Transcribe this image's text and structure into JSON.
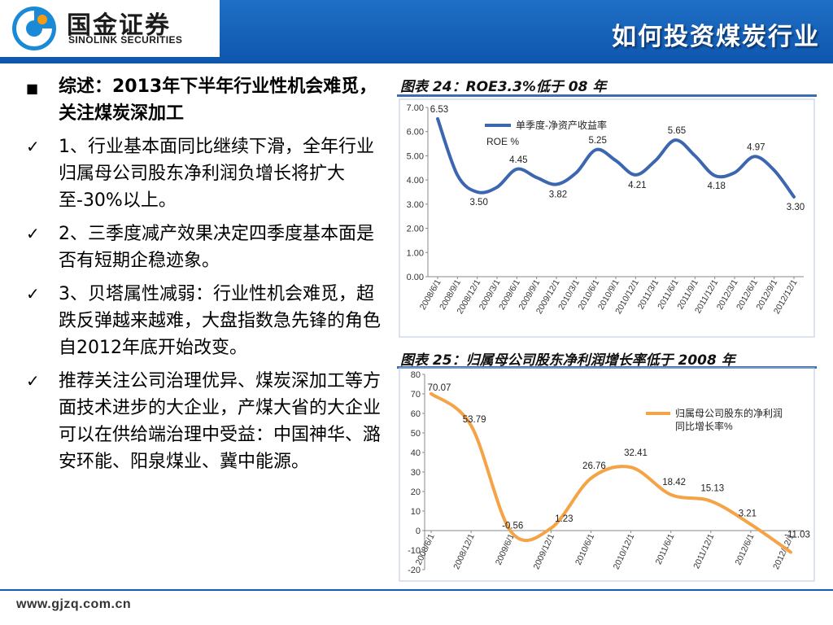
{
  "header": {
    "logo_cn": "国金证券",
    "logo_en": "SINOLINK SECURITIES",
    "title": "如何投资煤炭行业"
  },
  "bullets": [
    {
      "mark": "■",
      "text": "综述：2013年下半年行业性机会难觅，关注煤炭深加工"
    },
    {
      "mark": "✓",
      "text": "1、行业基本面同比继续下滑，全年行业归属母公司股东净利润负增长将扩大至-30%以上。"
    },
    {
      "mark": "✓",
      "text": "2、三季度减产效果决定四季度基本面是否有短期企稳迹象。"
    },
    {
      "mark": "✓",
      "text": "3、贝塔属性减弱：行业性机会难觅，超跌反弹越来越难，大盘指数急先锋的角色自2012年底开始改变。"
    },
    {
      "mark": "✓",
      "text": "推荐关注公司治理优异、煤炭深加工等方面技术进步的大企业，产煤大省的大企业可以在供给端治理中受益：中国神华、潞安环能、阳泉煤业、冀中能源。"
    }
  ],
  "footer": {
    "url": "www.gjzq.com.cn"
  },
  "chart_data": [
    {
      "type": "line",
      "title": "图表 24：ROE3.3%低于 08 年",
      "legend": [
        "单季度-净资产收益率",
        "ROE %"
      ],
      "x": [
        "2008/6/1",
        "2008/9/1",
        "2008/12/1",
        "2009/3/1",
        "2009/6/1",
        "2009/9/1",
        "2009/12/1",
        "2010/3/1",
        "2010/6/1",
        "2010/9/1",
        "2010/12/1",
        "2011/3/1",
        "2011/6/1",
        "2011/9/1",
        "2011/12/1",
        "2012/3/1",
        "2012/6/1",
        "2012/9/1",
        "2012/12/1"
      ],
      "values": [
        6.53,
        4.2,
        3.5,
        3.7,
        4.45,
        4.1,
        3.82,
        4.3,
        5.25,
        4.8,
        4.21,
        4.8,
        5.65,
        5.0,
        4.18,
        4.3,
        4.97,
        4.4,
        3.3
      ],
      "labels": [
        {
          "i": 0,
          "text": "6.53"
        },
        {
          "i": 2,
          "text": "3.50"
        },
        {
          "i": 4,
          "text": "4.45"
        },
        {
          "i": 6,
          "text": "3.82"
        },
        {
          "i": 8,
          "text": "5.25"
        },
        {
          "i": 10,
          "text": "4.21"
        },
        {
          "i": 12,
          "text": "5.65"
        },
        {
          "i": 14,
          "text": "4.18"
        },
        {
          "i": 16,
          "text": "4.97"
        },
        {
          "i": 18,
          "text": "3.30"
        }
      ],
      "ylim": [
        0,
        7
      ],
      "yticks": [
        "0.00",
        "1.00",
        "2.00",
        "3.00",
        "4.00",
        "5.00",
        "6.00",
        "7.00"
      ],
      "color": "#3c66b0"
    },
    {
      "type": "line",
      "title": "图表 25：归属母公司股东净利润增长率低于 2008 年",
      "legend": [
        "归属母公司股东的净利润",
        "同比增长率%"
      ],
      "x": [
        "2008/6/1",
        "2008/12/1",
        "2009/6/1",
        "2009/12/1",
        "2010/6/1",
        "2010/12/1",
        "2011/6/1",
        "2011/12/1",
        "2012/6/1",
        "2012/12/1"
      ],
      "values": [
        70.07,
        53.79,
        -0.56,
        1.23,
        26.76,
        32.41,
        18.42,
        15.13,
        3.21,
        -11.03
      ],
      "labels": [
        "70.07",
        "53.79",
        "-0.56",
        "1.23",
        "26.76",
        "32.41",
        "18.42",
        "15.13",
        "3.21",
        "-11.03"
      ],
      "ylim": [
        -20,
        80
      ],
      "yticks": [
        "-20",
        "-10",
        "0",
        "10",
        "20",
        "30",
        "40",
        "50",
        "60",
        "70",
        "80"
      ],
      "color": "#f4a347"
    }
  ]
}
